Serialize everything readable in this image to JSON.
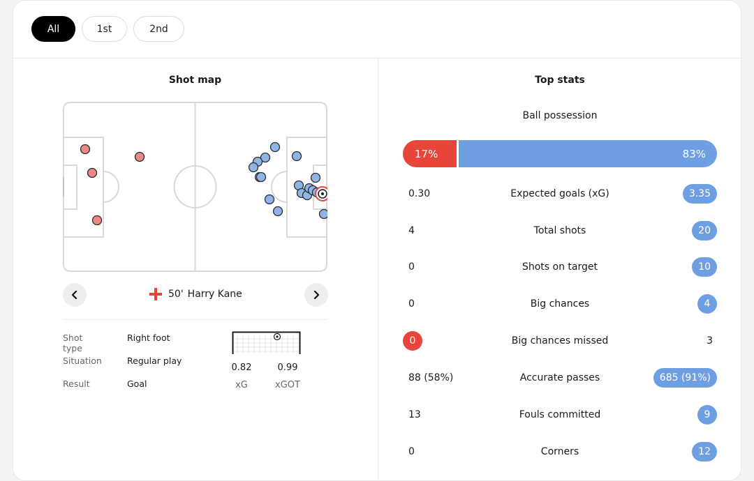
{
  "tabs": [
    {
      "label": "All",
      "active": true
    },
    {
      "label": "1st",
      "active": false
    },
    {
      "label": "2nd",
      "active": false
    }
  ],
  "shot_map": {
    "title": "Shot map",
    "selected_shot": {
      "minute": "50'",
      "player": "Harry Kane",
      "shot_type_label": "Shot type",
      "shot_type": "Right foot",
      "situation_label": "Situation",
      "situation": "Regular play",
      "result_label": "Result",
      "result": "Goal",
      "xg": "0.82",
      "xg_label": "xG",
      "xgot": "0.99",
      "xgot_label": "xGOT"
    },
    "colors": {
      "home": "#e88a82",
      "away": "#8fb5e6"
    }
  },
  "top_stats": {
    "title": "Top stats",
    "possession_label": "Ball possession",
    "possession_home": "17%",
    "possession_away": "83%",
    "possession_home_fraction": 0.17,
    "colors": {
      "home": "#e8443a",
      "away": "#6f9fe3"
    },
    "rows": [
      {
        "label": "Expected goals (xG)",
        "home": "0.30",
        "away": "3.35",
        "highlight": "away"
      },
      {
        "label": "Total shots",
        "home": "4",
        "away": "20",
        "highlight": "away"
      },
      {
        "label": "Shots on target",
        "home": "0",
        "away": "10",
        "highlight": "away"
      },
      {
        "label": "Big chances",
        "home": "0",
        "away": "4",
        "highlight": "away"
      },
      {
        "label": "Big chances missed",
        "home": "0",
        "away": "3",
        "highlight": "home"
      },
      {
        "label": "Accurate passes",
        "home": "88 (58%)",
        "away": "685 (91%)",
        "highlight": "away"
      },
      {
        "label": "Fouls committed",
        "home": "13",
        "away": "9",
        "highlight": "away"
      },
      {
        "label": "Corners",
        "home": "0",
        "away": "12",
        "highlight": "away"
      }
    ]
  }
}
